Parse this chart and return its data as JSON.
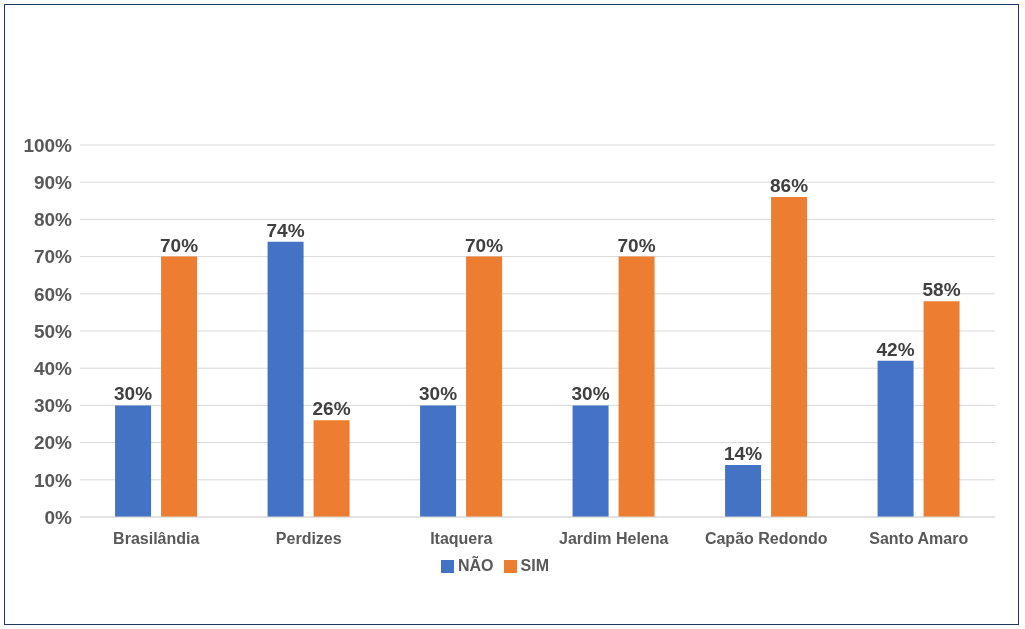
{
  "chart_data": {
    "type": "bar",
    "categories": [
      "Brasilândia",
      "Perdizes",
      "Itaquera",
      "Jardim Helena",
      "Capão Redondo",
      "Santo Amaro"
    ],
    "series": [
      {
        "name": "NÃO",
        "color": "#4472c4",
        "values": [
          30,
          74,
          30,
          30,
          14,
          42
        ],
        "value_labels": [
          "30%",
          "74%",
          "30%",
          "30%",
          "14%",
          "42%"
        ]
      },
      {
        "name": "SIM",
        "color": "#ed7d31",
        "values": [
          70,
          26,
          70,
          70,
          86,
          58
        ],
        "value_labels": [
          "70%",
          "26%",
          "70%",
          "70%",
          "86%",
          "58%"
        ]
      }
    ],
    "ylim": [
      0,
      100
    ],
    "yticks": [
      {
        "value": 0,
        "label": "0%"
      },
      {
        "value": 10,
        "label": "10%"
      },
      {
        "value": 20,
        "label": "20%"
      },
      {
        "value": 30,
        "label": "30%"
      },
      {
        "value": 40,
        "label": "40%"
      },
      {
        "value": 50,
        "label": "50%"
      },
      {
        "value": 60,
        "label": "60%"
      },
      {
        "value": 70,
        "label": "70%"
      },
      {
        "value": 80,
        "label": "80%"
      },
      {
        "value": 90,
        "label": "90%"
      },
      {
        "value": 100,
        "label": "100%"
      }
    ],
    "grid": "y",
    "legend": "bottom"
  }
}
